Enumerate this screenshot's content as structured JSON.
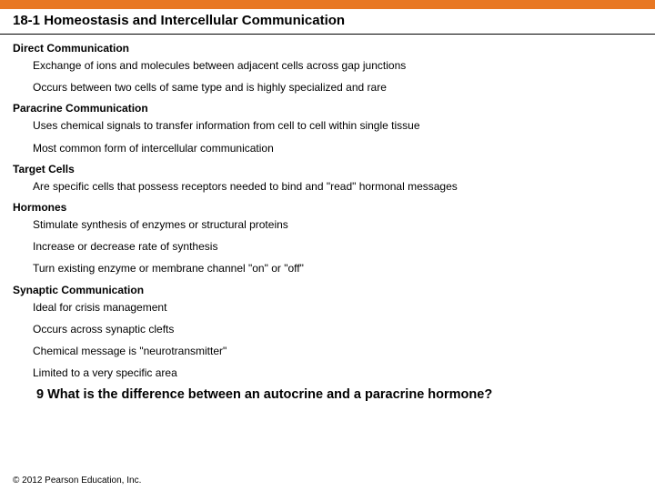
{
  "colors": {
    "accent_bar": "#e87722",
    "background": "#ffffff",
    "text": "#000000",
    "title_underline": "#000000"
  },
  "typography": {
    "family": "Arial, Helvetica, sans-serif",
    "title_size_pt": 15,
    "section_head_size_pt": 12,
    "bullet_size_pt": 12,
    "question_size_pt": 14.5,
    "copyright_size_pt": 10
  },
  "title": "18-1 Homeostasis and Intercellular Communication",
  "sections": [
    {
      "heading": "Direct Communication",
      "bullets": [
        "Exchange of ions and molecules between adjacent cells across gap junctions",
        "Occurs between two cells of same type and is highly specialized and rare"
      ]
    },
    {
      "heading": "Paracrine Communication",
      "bullets": [
        "Uses chemical signals to transfer information from cell to cell within single tissue",
        "Most common form of intercellular communication"
      ]
    },
    {
      "heading": "Target Cells",
      "bullets": [
        "Are specific cells that possess receptors needed to bind and \"read\" hormonal messages"
      ]
    },
    {
      "heading": "Hormones",
      "bullets": [
        "Stimulate synthesis of enzymes or structural proteins",
        "Increase or decrease rate of synthesis",
        "Turn existing enzyme or membrane channel \"on\" or \"off\""
      ]
    },
    {
      "heading": "Synaptic Communication",
      "bullets": [
        "Ideal for crisis management",
        "Occurs across synaptic clefts",
        "Chemical message is \"neurotransmitter\"",
        "Limited to a very specific area"
      ]
    }
  ],
  "question": "9  What is the difference between an autocrine and a paracrine hormone?",
  "copyright": "© 2012 Pearson Education, Inc."
}
